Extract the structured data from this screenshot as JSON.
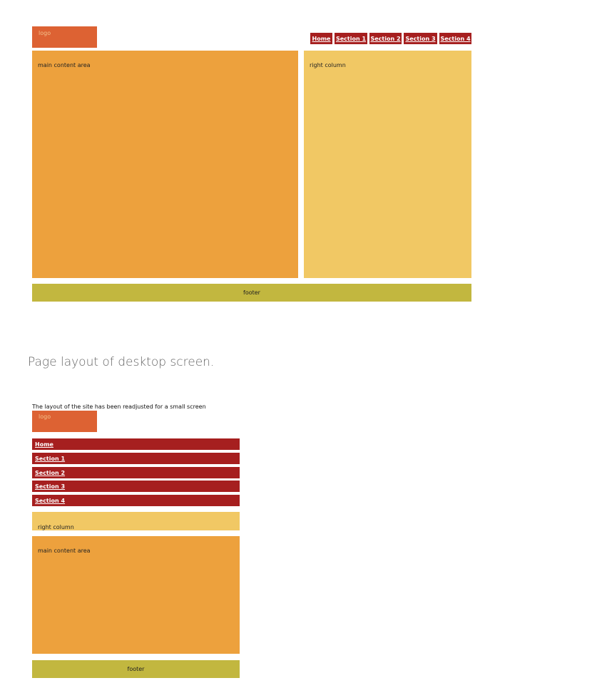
{
  "colors": {
    "logo": "#dd6233",
    "nav": "#a61f1f",
    "main": "#eda13d",
    "right": "#f1c864",
    "footer": "#c2b73f"
  },
  "desktop": {
    "logo": "logo",
    "nav": [
      "Home",
      "Section 1",
      "Section 2",
      "Section 3",
      "Section 4"
    ],
    "main_label": "main content area",
    "right_label": "right column",
    "footer": "footer"
  },
  "caption": "Page layout of desktop screen.",
  "mobile": {
    "notice": "The layout of the site has been readjusted for a small screen",
    "logo": "logo",
    "nav": [
      "Home",
      "Section 1",
      "Section 2",
      "Section 3",
      "Section 4"
    ],
    "right_label": "right column",
    "main_label": "main content area",
    "footer": "footer"
  }
}
